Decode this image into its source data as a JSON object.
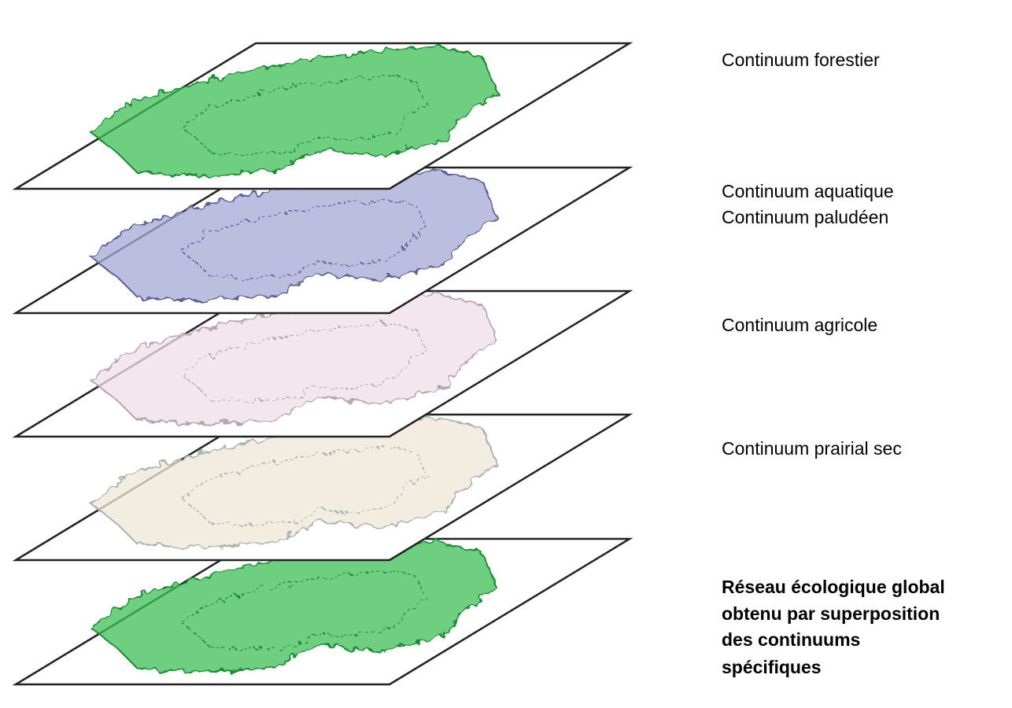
{
  "layers": [
    {
      "label_lines": [
        "Continuum forestier"
      ]
    },
    {
      "label_lines": [
        "Continuum aquatique",
        "Continuum paludéen"
      ]
    },
    {
      "label_lines": [
        "Continuum agricole"
      ]
    },
    {
      "label_lines": [
        "Continuum prairial sec"
      ]
    },
    {
      "label_lines": [
        "Réseau écologique global",
        "obtenu par superposition",
        "des continuums",
        "spécifiques"
      ]
    }
  ]
}
